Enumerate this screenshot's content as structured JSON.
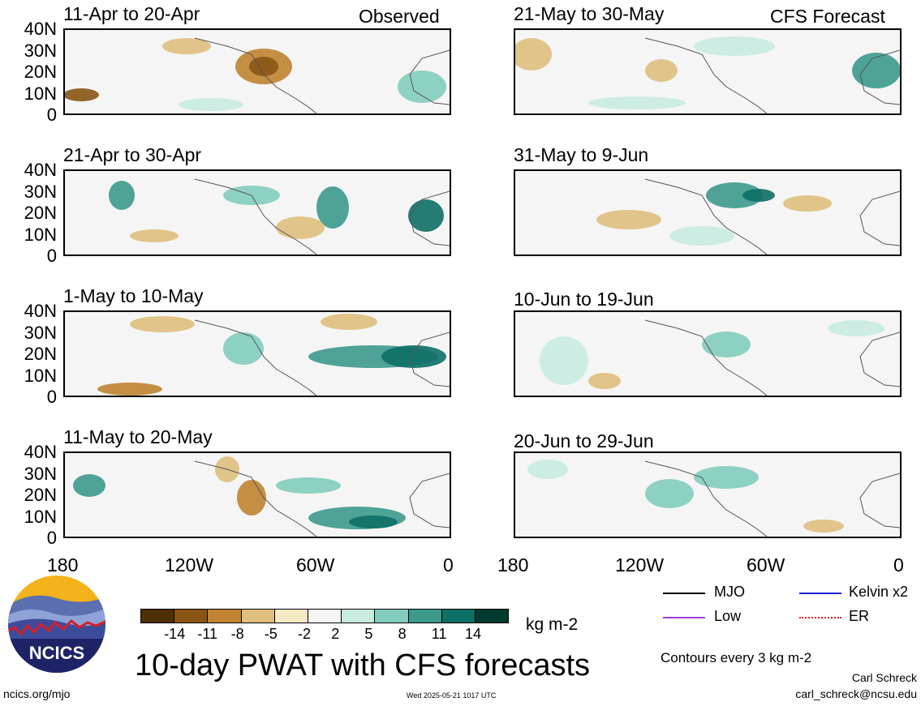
{
  "headers": {
    "observed": "Observed",
    "forecast": "CFS Forecast"
  },
  "panels": [
    {
      "title": "11-Apr to 20-Apr"
    },
    {
      "title": "21-Apr to 30-Apr"
    },
    {
      "title": "1-May to 10-May"
    },
    {
      "title": "11-May to 20-May"
    },
    {
      "title": "21-May to 30-May"
    },
    {
      "title": "31-May to 9-Jun"
    },
    {
      "title": "10-Jun to 19-Jun"
    },
    {
      "title": "20-Jun to 29-Jun"
    }
  ],
  "y_ticks": [
    "40N",
    "30N",
    "20N",
    "10N",
    "0"
  ],
  "x_ticks": [
    "180",
    "120W",
    "60W",
    "0"
  ],
  "colorbar": {
    "labels": [
      "-14",
      "-11",
      "-8",
      "-5",
      "-2",
      "2",
      "5",
      "8",
      "11",
      "14"
    ],
    "colors": [
      "#4d2f08",
      "#8a5514",
      "#bf8332",
      "#dfbf7d",
      "#f5e8c4",
      "#f5f5f5",
      "#c8ebe2",
      "#82cdbd",
      "#3c9a8c",
      "#0e6f67",
      "#003b30"
    ],
    "units": "kg m-2"
  },
  "legend": [
    {
      "label": "MJO",
      "color": "#000000",
      "style": "solid"
    },
    {
      "label": "Kelvin x2",
      "color": "#1c22d6",
      "style": "solid"
    },
    {
      "label": "Low",
      "color": "#9b3fd6",
      "style": "solid"
    },
    {
      "label": "ER",
      "color": "#e01818",
      "style": "dotted"
    }
  ],
  "title": "10-day PWAT with CFS forecasts",
  "contours_note": "Contours every 3 kg m-2",
  "author": "Carl Schreck",
  "email": "carl_schreck@ncsu.edu",
  "timestamp": "Wed 2025-05-21 1017 UTC",
  "website": "ncics.org/mjo",
  "logo_text": "NCICS"
}
